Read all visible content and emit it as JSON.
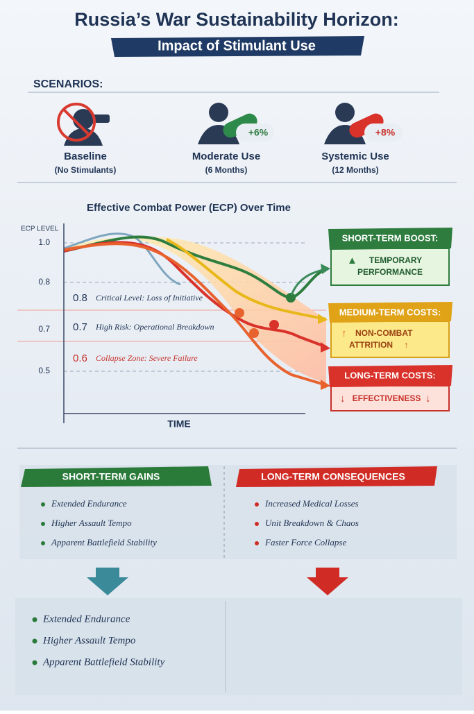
{
  "header": {
    "title": "Russia’s War Sustainability Horizon:",
    "subtitle": "Impact of Stimulant Use"
  },
  "scenarios": {
    "heading": "SCENARIOS:",
    "items": [
      {
        "label": "Baseline",
        "sub": "(No Stimulants)"
      },
      {
        "label": "Moderate Use",
        "sub": "(6 Months)",
        "badge": "+6%"
      },
      {
        "label": "Systemic Use",
        "sub": "(12 Months)",
        "badge": "+8%"
      }
    ]
  },
  "chart": {
    "title": "Effective Combat Power (ECP) Over Time",
    "y_label": "ECP LEVEL",
    "x_label": "TIME",
    "y_ticks": [
      "1.0",
      "0.8",
      "0.7",
      "0.5"
    ],
    "thresholds": [
      {
        "value": "0.8",
        "text": "Critical Level: Loss of Initiative"
      },
      {
        "value": "0.7",
        "text": "High Risk: Operational Breakdown"
      },
      {
        "value": "0.6",
        "text": "Collapse Zone: Severe Failure"
      }
    ],
    "callouts": [
      {
        "title": "SHORT-TERM BOOST:",
        "lines": [
          "TEMPORARY",
          "PERFORMANCE"
        ]
      },
      {
        "title": "MEDIUM-TERM COSTS:",
        "lines": [
          "NON-COMBAT",
          "ATTRITION"
        ]
      },
      {
        "title": "LONG-TERM COSTS:",
        "lines": [
          "EFFECTIVENESS"
        ]
      }
    ]
  },
  "gains": {
    "title": "SHORT-TERM GAINS",
    "items": [
      "Extended Endurance",
      "Higher Assault Tempo",
      "Apparent Battlefield Stability"
    ]
  },
  "consequences": {
    "title": "LONG-TERM CONSEQUENCES",
    "items": [
      "Increased Medical Losses",
      "Unit Breakdown & Chaos",
      "Faster Force Collapse"
    ]
  },
  "summary": {
    "items": [
      "Extended Endurance",
      "Higher Assault Tempo",
      "Apparent Battlefield Stability"
    ]
  }
}
